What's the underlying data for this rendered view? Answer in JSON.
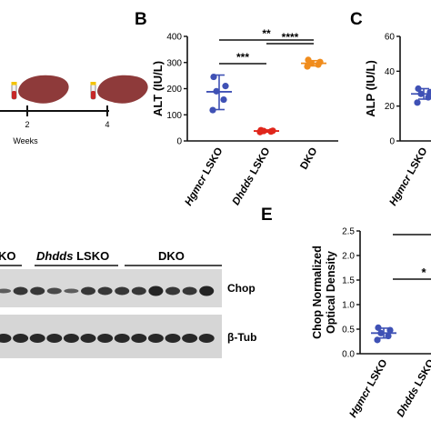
{
  "panel_labels": {
    "b": "B",
    "c": "C",
    "e": "E"
  },
  "timeline": {
    "tick_2": "2",
    "tick_4": "4",
    "axis_label": "Weeks"
  },
  "blot": {
    "group_labels": [
      "KO",
      "LSKO",
      "DKO"
    ],
    "dhdds_italic": "Dhdds",
    "row_labels": [
      "Chop",
      "β-Tub"
    ]
  },
  "colors": {
    "hgmcr": "#3f51b5",
    "dhdds": "#e0261b",
    "dko": "#f08c1c",
    "liver": "#8e3a3a"
  },
  "chart_data": [
    {
      "panel": "B",
      "type": "scatter",
      "ylabel": "ALT (IU/L)",
      "ylim": [
        0,
        400
      ],
      "yticks": [
        "0",
        "100",
        "200",
        "300",
        "400"
      ],
      "categories": [
        {
          "italic": "Hgmcr",
          "rest": " LSKO"
        },
        {
          "italic": "Dhdds",
          "rest": " LSKO"
        },
        {
          "italic": "",
          "rest": "DKO"
        }
      ],
      "series": [
        {
          "points": [
            118,
            158,
            190,
            210,
            245
          ],
          "mean": 188,
          "sd_low": 120,
          "sd_high": 252
        },
        {
          "points": [
            34,
            36,
            38,
            39,
            41
          ],
          "mean": 38,
          "sd_low": 34,
          "sd_high": 42
        },
        {
          "points": [
            285,
            292,
            298,
            302,
            310
          ],
          "mean": 297,
          "sd_low": 287,
          "sd_high": 307
        }
      ],
      "significance": [
        {
          "from": 0,
          "to": 2,
          "label": "**"
        },
        {
          "from": 0,
          "to": 1,
          "label": "***"
        },
        {
          "from": 1,
          "to": 2,
          "label": "****"
        }
      ]
    },
    {
      "panel": "C",
      "type": "scatter",
      "ylabel": "ALP (IU/L)",
      "ylim": [
        0,
        60
      ],
      "yticks": [
        "0",
        "20",
        "40",
        "60"
      ],
      "categories": [
        {
          "italic": "Hgmcr",
          "rest": " LSKO"
        }
      ],
      "series": [
        {
          "points": [
            22,
            25,
            27,
            28,
            30
          ],
          "mean": 27,
          "sd_low": 24,
          "sd_high": 30
        }
      ]
    },
    {
      "panel": "E",
      "type": "scatter",
      "ylabel": "Chop Normalized Optical Density",
      "ylim": [
        0,
        2.5
      ],
      "yticks": [
        "0.0",
        "0.5",
        "1.0",
        "1.5",
        "2.0",
        "2.5"
      ],
      "categories": [
        {
          "italic": "Hgmcr",
          "rest": " LSKO"
        },
        {
          "italic": "Dhdds",
          "rest": " LSKO"
        }
      ],
      "series": [
        {
          "points": [
            0.28,
            0.36,
            0.42,
            0.48,
            0.53
          ],
          "mean": 0.42,
          "sd_low": 0.32,
          "sd_high": 0.52
        }
      ],
      "significance": [
        {
          "label": ""
        },
        {
          "label": "*"
        }
      ]
    }
  ]
}
